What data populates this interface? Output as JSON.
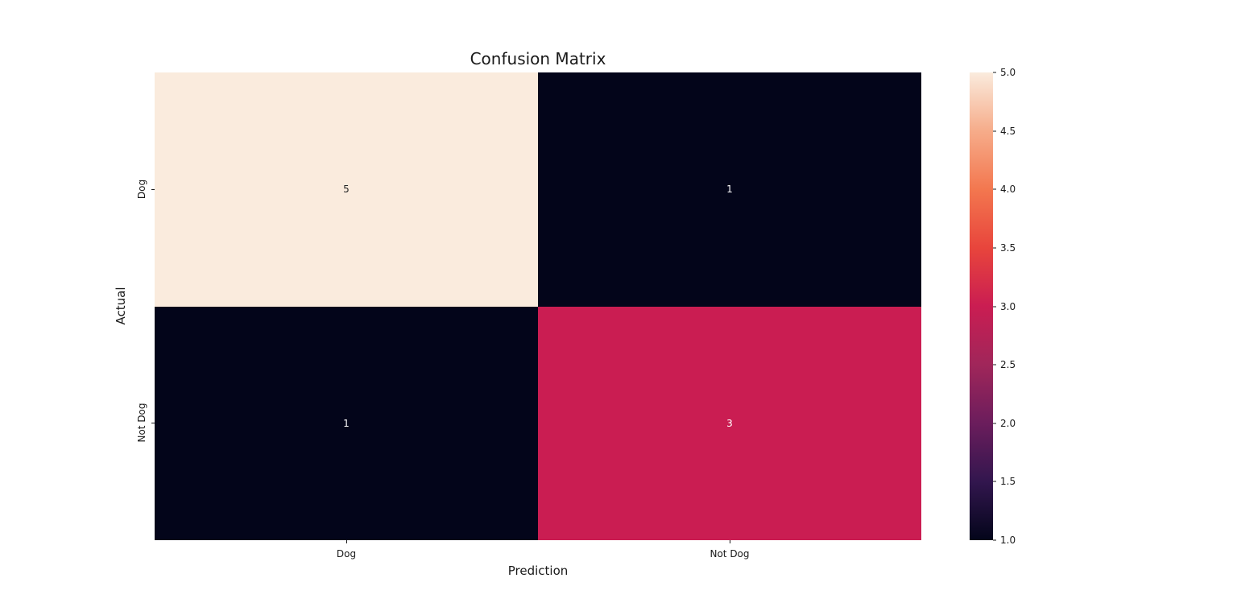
{
  "chart_data": {
    "type": "heatmap",
    "title": "Confusion Matrix",
    "xlabel": "Prediction",
    "ylabel": "Actual",
    "x_categories": [
      "Dog",
      "Not Dog"
    ],
    "y_categories": [
      "Dog",
      "Not Dog"
    ],
    "matrix": [
      [
        5,
        1
      ],
      [
        1,
        3
      ]
    ],
    "cells": [
      {
        "row": "Dog",
        "col": "Dog",
        "value": "5",
        "bg": "#FAEBDD",
        "text_color": "#262626"
      },
      {
        "row": "Dog",
        "col": "Not Dog",
        "value": "1",
        "bg": "#03051A",
        "text_color": "#FFFFFF"
      },
      {
        "row": "Not Dog",
        "col": "Dog",
        "value": "1",
        "bg": "#03051A",
        "text_color": "#FFFFFF"
      },
      {
        "row": "Not Dog",
        "col": "Not Dog",
        "value": "3",
        "bg": "#CA1D52",
        "text_color": "#FFFFFF"
      }
    ],
    "colorbar": {
      "min": 1.0,
      "max": 5.0,
      "ticks": [
        "5.0",
        "4.5",
        "4.0",
        "3.5",
        "3.0",
        "2.5",
        "2.0",
        "1.5",
        "1.0"
      ],
      "colormap": "rocket",
      "gradient_stops": [
        "#03051A",
        "#32164E",
        "#6B1D5C",
        "#A0265A",
        "#CA1D52",
        "#E8453C",
        "#F3774F",
        "#F6AC8A",
        "#FAEBDD"
      ]
    },
    "layout": {
      "grid": "off",
      "legend": "none",
      "colorbar_position": "right",
      "background": "#FFFFFF"
    }
  }
}
